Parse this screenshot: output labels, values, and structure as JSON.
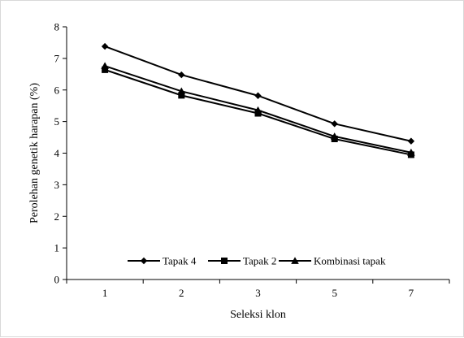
{
  "chart_data": {
    "type": "line",
    "title": "",
    "xlabel": "Seleksi klon",
    "ylabel": "Perolehan genetik harapan (%)",
    "categories": [
      "1",
      "2",
      "3",
      "5",
      "7"
    ],
    "ylim": [
      0,
      8
    ],
    "yticks": [
      0,
      1,
      2,
      3,
      4,
      5,
      6,
      7,
      8
    ],
    "grid": false,
    "legend_position": "bottom",
    "series": [
      {
        "name": "Tapak 4",
        "marker": "diamond",
        "values": [
          7.38,
          6.48,
          5.82,
          4.93,
          4.38
        ]
      },
      {
        "name": "Tapak 2",
        "marker": "square",
        "values": [
          6.64,
          5.83,
          5.26,
          4.45,
          3.95
        ]
      },
      {
        "name": "Kombinasi tapak",
        "marker": "triangle",
        "values": [
          6.76,
          5.96,
          5.36,
          4.53,
          4.02
        ]
      }
    ],
    "colors": {
      "line": "#000000",
      "axis": "#000000",
      "background": "#ffffff"
    }
  }
}
